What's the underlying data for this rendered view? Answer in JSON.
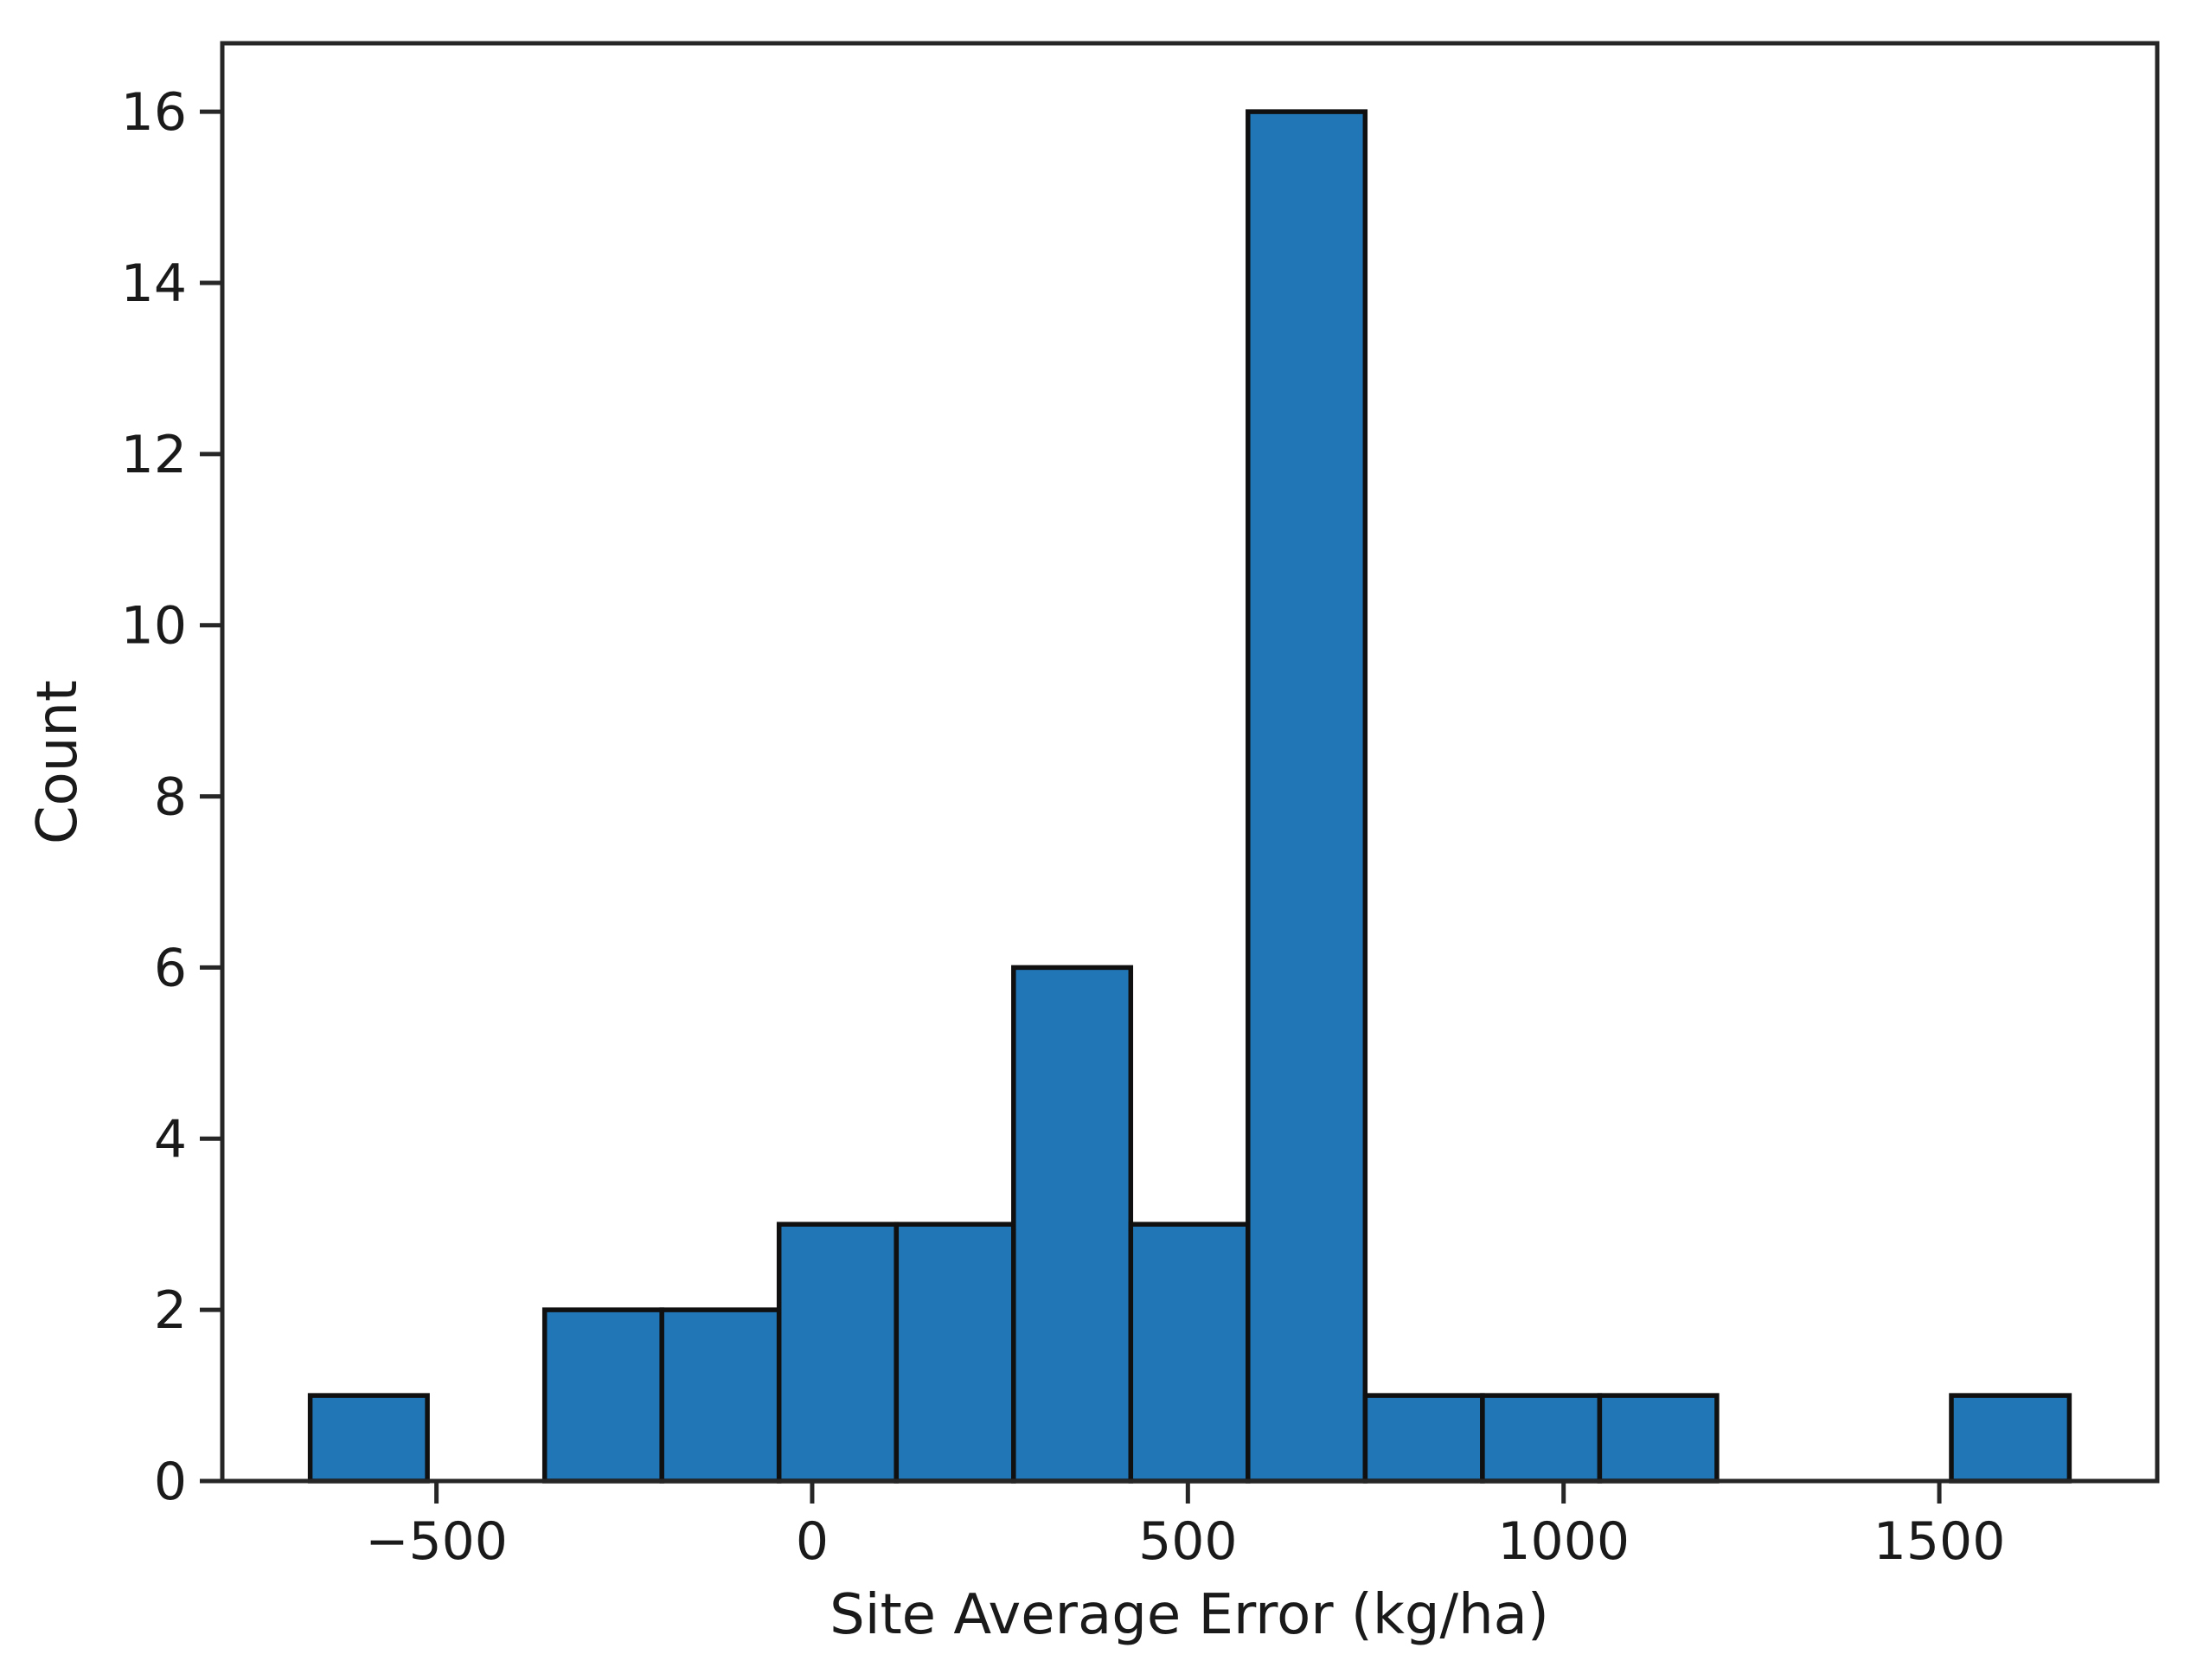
{
  "chart_data": {
    "type": "bar",
    "subtype": "histogram",
    "title": "",
    "xlabel": "Site Average Error (kg/ha)",
    "ylabel": "Count",
    "bin_edges": [
      -668,
      -512,
      -356,
      -200,
      -44,
      112,
      268,
      424,
      580,
      736,
      892,
      1048,
      1204,
      1360,
      1516,
      1673
    ],
    "counts": [
      1,
      0,
      2,
      2,
      3,
      3,
      6,
      3,
      16,
      1,
      1,
      1,
      0,
      0,
      1
    ],
    "xlim": [
      -785,
      1790
    ],
    "ylim": [
      0,
      16.8
    ],
    "x_ticks": [
      {
        "value": -500,
        "label": "−500"
      },
      {
        "value": 0,
        "label": "0"
      },
      {
        "value": 500,
        "label": "500"
      },
      {
        "value": 1000,
        "label": "1000"
      },
      {
        "value": 1500,
        "label": "1500"
      }
    ],
    "y_ticks": [
      {
        "value": 0,
        "label": "0"
      },
      {
        "value": 2,
        "label": "2"
      },
      {
        "value": 4,
        "label": "4"
      },
      {
        "value": 6,
        "label": "6"
      },
      {
        "value": 8,
        "label": "8"
      },
      {
        "value": 10,
        "label": "10"
      },
      {
        "value": 12,
        "label": "12"
      },
      {
        "value": 14,
        "label": "14"
      },
      {
        "value": 16,
        "label": "16"
      }
    ],
    "grid": false,
    "legend_position": "none",
    "colors": {
      "bar_fill": "#2176b5",
      "bar_edge": "#101010",
      "axis": "#262626",
      "text": "#1a1a1a",
      "background": "#ffffff"
    }
  }
}
